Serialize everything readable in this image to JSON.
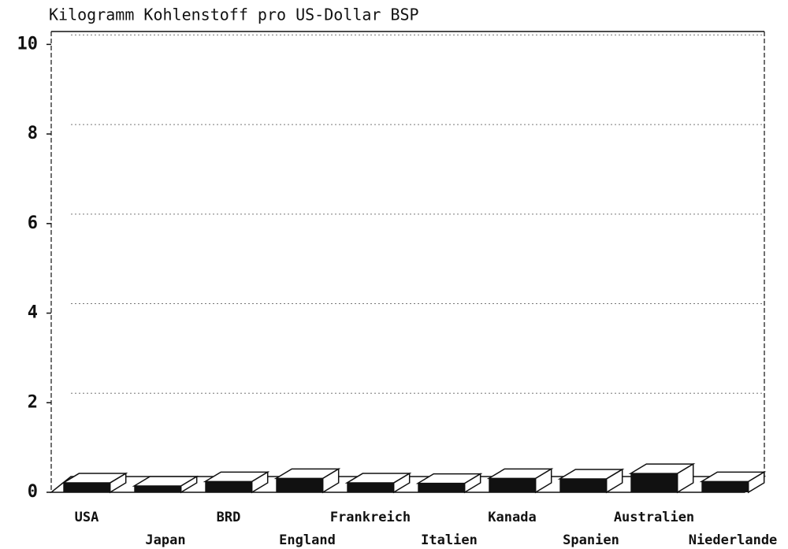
{
  "chart_data": {
    "type": "bar3d",
    "title": "Kilogramm Kohlenstoff pro US-Dollar BSP",
    "categories": [
      "USA",
      "Japan",
      "BRD",
      "England",
      "Frankreich",
      "Italien",
      "Kanada",
      "Spanien",
      "Australien",
      "Niederlande"
    ],
    "values": [
      0.21,
      0.14,
      0.24,
      0.31,
      0.21,
      0.2,
      0.31,
      0.3,
      0.42,
      0.24
    ],
    "color": "#111111",
    "ylim": [
      0,
      10.2
    ],
    "yticks": [
      0,
      2,
      4,
      6,
      8,
      10
    ],
    "grid": true
  }
}
